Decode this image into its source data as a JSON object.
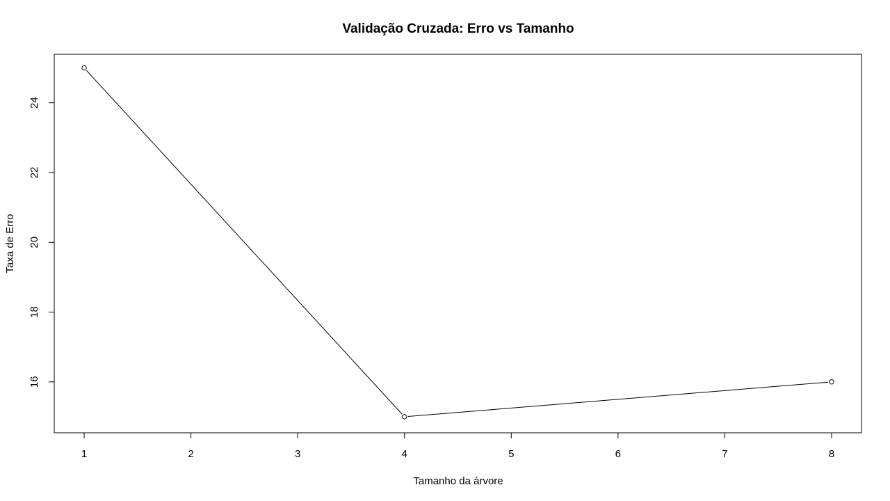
{
  "chart_data": {
    "type": "line",
    "title": "Validação Cruzada: Erro vs Tamanho",
    "xlabel": "Tamanho da árvore",
    "ylabel": "Taxa de Erro",
    "x": [
      1,
      4,
      8
    ],
    "y": [
      25,
      15,
      16
    ],
    "xlim": [
      0.72,
      8.28
    ],
    "ylim": [
      14.54,
      25.39
    ],
    "xticks": [
      1,
      2,
      3,
      4,
      5,
      6,
      7,
      8
    ],
    "yticks": [
      16,
      18,
      20,
      22,
      24
    ],
    "marker": "open-circle",
    "line_color": "#000000",
    "grid": false,
    "legend": "none"
  }
}
